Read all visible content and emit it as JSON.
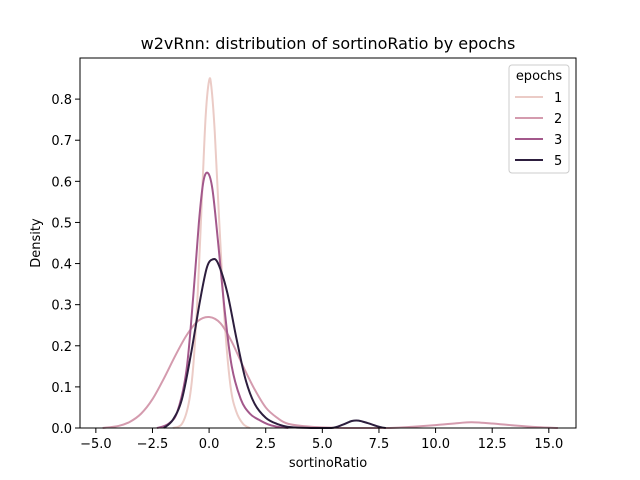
{
  "chart_data": {
    "type": "line",
    "title": "w2vRnn: distribution of sortinoRatio by epochs",
    "xlabel": "sortinoRatio",
    "ylabel": "Density",
    "xlim": [
      -5.7,
      16.2
    ],
    "ylim": [
      0,
      0.9
    ],
    "x_ticks": [
      -5,
      -2.5,
      0,
      2.5,
      5,
      7.5,
      10,
      12.5,
      15
    ],
    "x_tick_labels": [
      "−5.0",
      "−2.5",
      "0.0",
      "2.5",
      "5.0",
      "7.5",
      "10.0",
      "12.5",
      "15.0"
    ],
    "y_ticks": [
      0,
      0.1,
      0.2,
      0.3,
      0.4,
      0.5,
      0.6,
      0.7,
      0.8
    ],
    "y_tick_labels": [
      "0.0",
      "0.1",
      "0.2",
      "0.3",
      "0.4",
      "0.5",
      "0.6",
      "0.7",
      "0.8"
    ],
    "grid": false,
    "legend": {
      "title": "epochs",
      "position": "top-right"
    },
    "series": [
      {
        "name": "1",
        "color": "#ebcbc6",
        "points": [
          [
            -1.6,
            0.0
          ],
          [
            -1.2,
            0.01
          ],
          [
            -0.9,
            0.06
          ],
          [
            -0.7,
            0.15
          ],
          [
            -0.5,
            0.33
          ],
          [
            -0.3,
            0.58
          ],
          [
            -0.15,
            0.76
          ],
          [
            0.0,
            0.845
          ],
          [
            0.1,
            0.83
          ],
          [
            0.25,
            0.72
          ],
          [
            0.45,
            0.5
          ],
          [
            0.7,
            0.25
          ],
          [
            0.95,
            0.1
          ],
          [
            1.2,
            0.04
          ],
          [
            1.5,
            0.01
          ],
          [
            1.8,
            0.0
          ]
        ]
      },
      {
        "name": "2",
        "color": "#d49bae",
        "points": [
          [
            -4.7,
            0.0
          ],
          [
            -4.0,
            0.005
          ],
          [
            -3.5,
            0.015
          ],
          [
            -3.0,
            0.035
          ],
          [
            -2.5,
            0.07
          ],
          [
            -2.0,
            0.12
          ],
          [
            -1.5,
            0.175
          ],
          [
            -1.0,
            0.225
          ],
          [
            -0.5,
            0.26
          ],
          [
            0.0,
            0.27
          ],
          [
            0.5,
            0.255
          ],
          [
            1.0,
            0.21
          ],
          [
            1.5,
            0.15
          ],
          [
            2.0,
            0.095
          ],
          [
            2.5,
            0.05
          ],
          [
            3.0,
            0.025
          ],
          [
            3.5,
            0.01
          ],
          [
            4.5,
            0.003
          ],
          [
            6.0,
            0.0
          ],
          [
            8.0,
            0.0
          ],
          [
            9.0,
            0.003
          ],
          [
            10.0,
            0.007
          ],
          [
            11.0,
            0.012
          ],
          [
            11.6,
            0.014
          ],
          [
            12.5,
            0.011
          ],
          [
            13.5,
            0.006
          ],
          [
            14.5,
            0.002
          ],
          [
            15.4,
            0.0
          ]
        ]
      },
      {
        "name": "3",
        "color": "#a3588b",
        "points": [
          [
            -2.3,
            0.0
          ],
          [
            -1.8,
            0.01
          ],
          [
            -1.4,
            0.04
          ],
          [
            -1.0,
            0.14
          ],
          [
            -0.7,
            0.32
          ],
          [
            -0.45,
            0.5
          ],
          [
            -0.25,
            0.6
          ],
          [
            -0.05,
            0.62
          ],
          [
            0.15,
            0.58
          ],
          [
            0.4,
            0.45
          ],
          [
            0.7,
            0.28
          ],
          [
            1.0,
            0.15
          ],
          [
            1.4,
            0.07
          ],
          [
            1.8,
            0.035
          ],
          [
            2.2,
            0.02
          ],
          [
            2.6,
            0.009
          ],
          [
            3.0,
            0.003
          ],
          [
            3.5,
            0.0
          ]
        ]
      },
      {
        "name": "5",
        "color": "#2d1e3e",
        "points": [
          [
            -2.0,
            0.0
          ],
          [
            -1.6,
            0.02
          ],
          [
            -1.2,
            0.07
          ],
          [
            -0.8,
            0.18
          ],
          [
            -0.4,
            0.31
          ],
          [
            -0.1,
            0.39
          ],
          [
            0.15,
            0.41
          ],
          [
            0.4,
            0.4
          ],
          [
            0.8,
            0.33
          ],
          [
            1.2,
            0.22
          ],
          [
            1.6,
            0.12
          ],
          [
            2.0,
            0.06
          ],
          [
            2.5,
            0.025
          ],
          [
            3.0,
            0.01
          ],
          [
            3.6,
            0.002
          ],
          [
            4.5,
            0.0
          ],
          [
            5.4,
            0.0
          ],
          [
            5.9,
            0.008
          ],
          [
            6.3,
            0.017
          ],
          [
            6.6,
            0.018
          ],
          [
            7.0,
            0.012
          ],
          [
            7.5,
            0.003
          ],
          [
            7.8,
            0.0
          ]
        ]
      }
    ]
  }
}
